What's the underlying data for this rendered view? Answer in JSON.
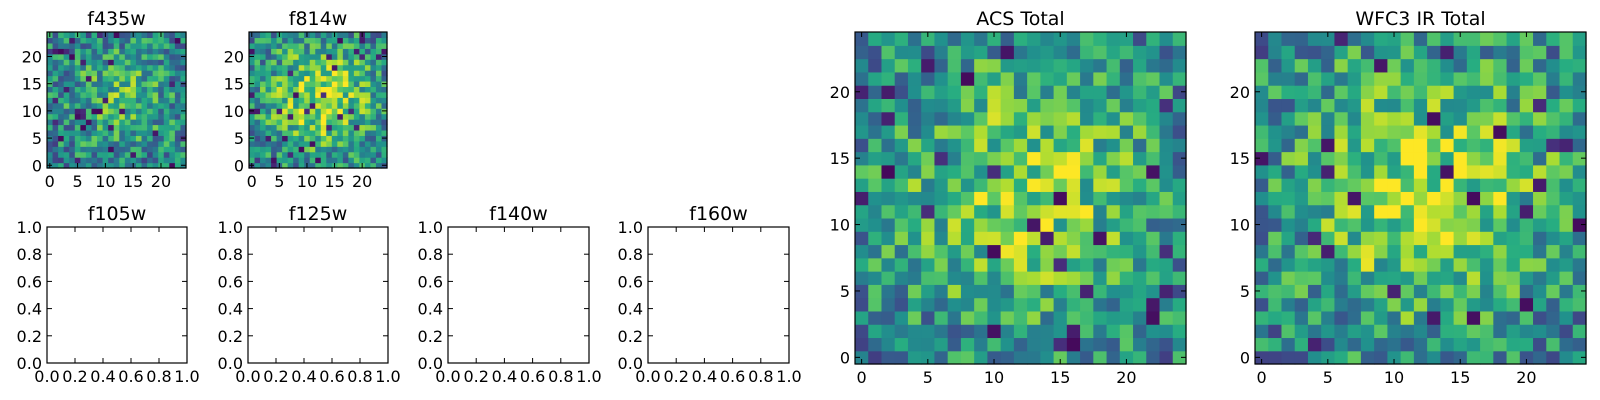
{
  "chart_data": [
    {
      "id": "f435w",
      "type": "heatmap",
      "title": "f435w",
      "xticks": [
        "0",
        "5",
        "10",
        "15",
        "20"
      ],
      "yticks": [
        "0",
        "5",
        "10",
        "15",
        "20"
      ],
      "xlim": [
        -0.5,
        24.5
      ],
      "ylim": [
        -0.5,
        24.5
      ],
      "grid_size": 25,
      "seed": 11,
      "colormap": "viridis",
      "blob_strength": 0.25,
      "dark_fraction": 0.05
    },
    {
      "id": "f814w",
      "type": "heatmap",
      "title": "f814w",
      "xticks": [
        "0",
        "5",
        "10",
        "15",
        "20"
      ],
      "yticks": [
        "0",
        "5",
        "10",
        "15",
        "20"
      ],
      "xlim": [
        -0.5,
        24.5
      ],
      "ylim": [
        -0.5,
        24.5
      ],
      "grid_size": 25,
      "seed": 23,
      "colormap": "viridis",
      "blob_strength": 0.45,
      "dark_fraction": 0.05
    },
    {
      "id": "f105w",
      "type": "empty",
      "title": "f105w",
      "xticks": [
        "0.0",
        "0.2",
        "0.4",
        "0.6",
        "0.8",
        "1.0"
      ],
      "yticks": [
        "0.0",
        "0.2",
        "0.4",
        "0.6",
        "0.8",
        "1.0"
      ],
      "xlim": [
        0,
        1
      ],
      "ylim": [
        0,
        1
      ]
    },
    {
      "id": "f125w",
      "type": "empty",
      "title": "f125w",
      "xticks": [
        "0.0",
        "0.2",
        "0.4",
        "0.6",
        "0.8",
        "1.0"
      ],
      "yticks": [
        "0.0",
        "0.2",
        "0.4",
        "0.6",
        "0.8",
        "1.0"
      ],
      "xlim": [
        0,
        1
      ],
      "ylim": [
        0,
        1
      ]
    },
    {
      "id": "f140w",
      "type": "empty",
      "title": "f140w",
      "xticks": [
        "0.0",
        "0.2",
        "0.4",
        "0.6",
        "0.8",
        "1.0"
      ],
      "yticks": [
        "0.0",
        "0.2",
        "0.4",
        "0.6",
        "0.8",
        "1.0"
      ],
      "xlim": [
        0,
        1
      ],
      "ylim": [
        0,
        1
      ]
    },
    {
      "id": "f160w",
      "type": "empty",
      "title": "f160w",
      "xticks": [
        "0.0",
        "0.2",
        "0.4",
        "0.6",
        "0.8",
        "1.0"
      ],
      "yticks": [
        "0.0",
        "0.2",
        "0.4",
        "0.6",
        "0.8",
        "1.0"
      ],
      "xlim": [
        0,
        1
      ],
      "ylim": [
        0,
        1
      ]
    },
    {
      "id": "acs-total",
      "type": "heatmap",
      "title": "ACS Total",
      "xticks": [
        "0",
        "5",
        "10",
        "15",
        "20"
      ],
      "yticks": [
        "0",
        "5",
        "10",
        "15",
        "20"
      ],
      "xlim": [
        -0.5,
        24.5
      ],
      "ylim": [
        -0.5,
        24.5
      ],
      "grid_size": 25,
      "seed": 37,
      "colormap": "viridis",
      "blob_strength": 0.4,
      "dark_fraction": 0.035
    },
    {
      "id": "wfc3-ir-total",
      "type": "heatmap",
      "title": "WFC3 IR Total",
      "xticks": [
        "0",
        "5",
        "10",
        "15",
        "20"
      ],
      "yticks": [
        "0",
        "5",
        "10",
        "15",
        "20"
      ],
      "xlim": [
        -0.5,
        24.5
      ],
      "ylim": [
        -0.5,
        24.5
      ],
      "grid_size": 25,
      "seed": 53,
      "colormap": "viridis",
      "blob_strength": 0.45,
      "dark_fraction": 0.035
    }
  ]
}
